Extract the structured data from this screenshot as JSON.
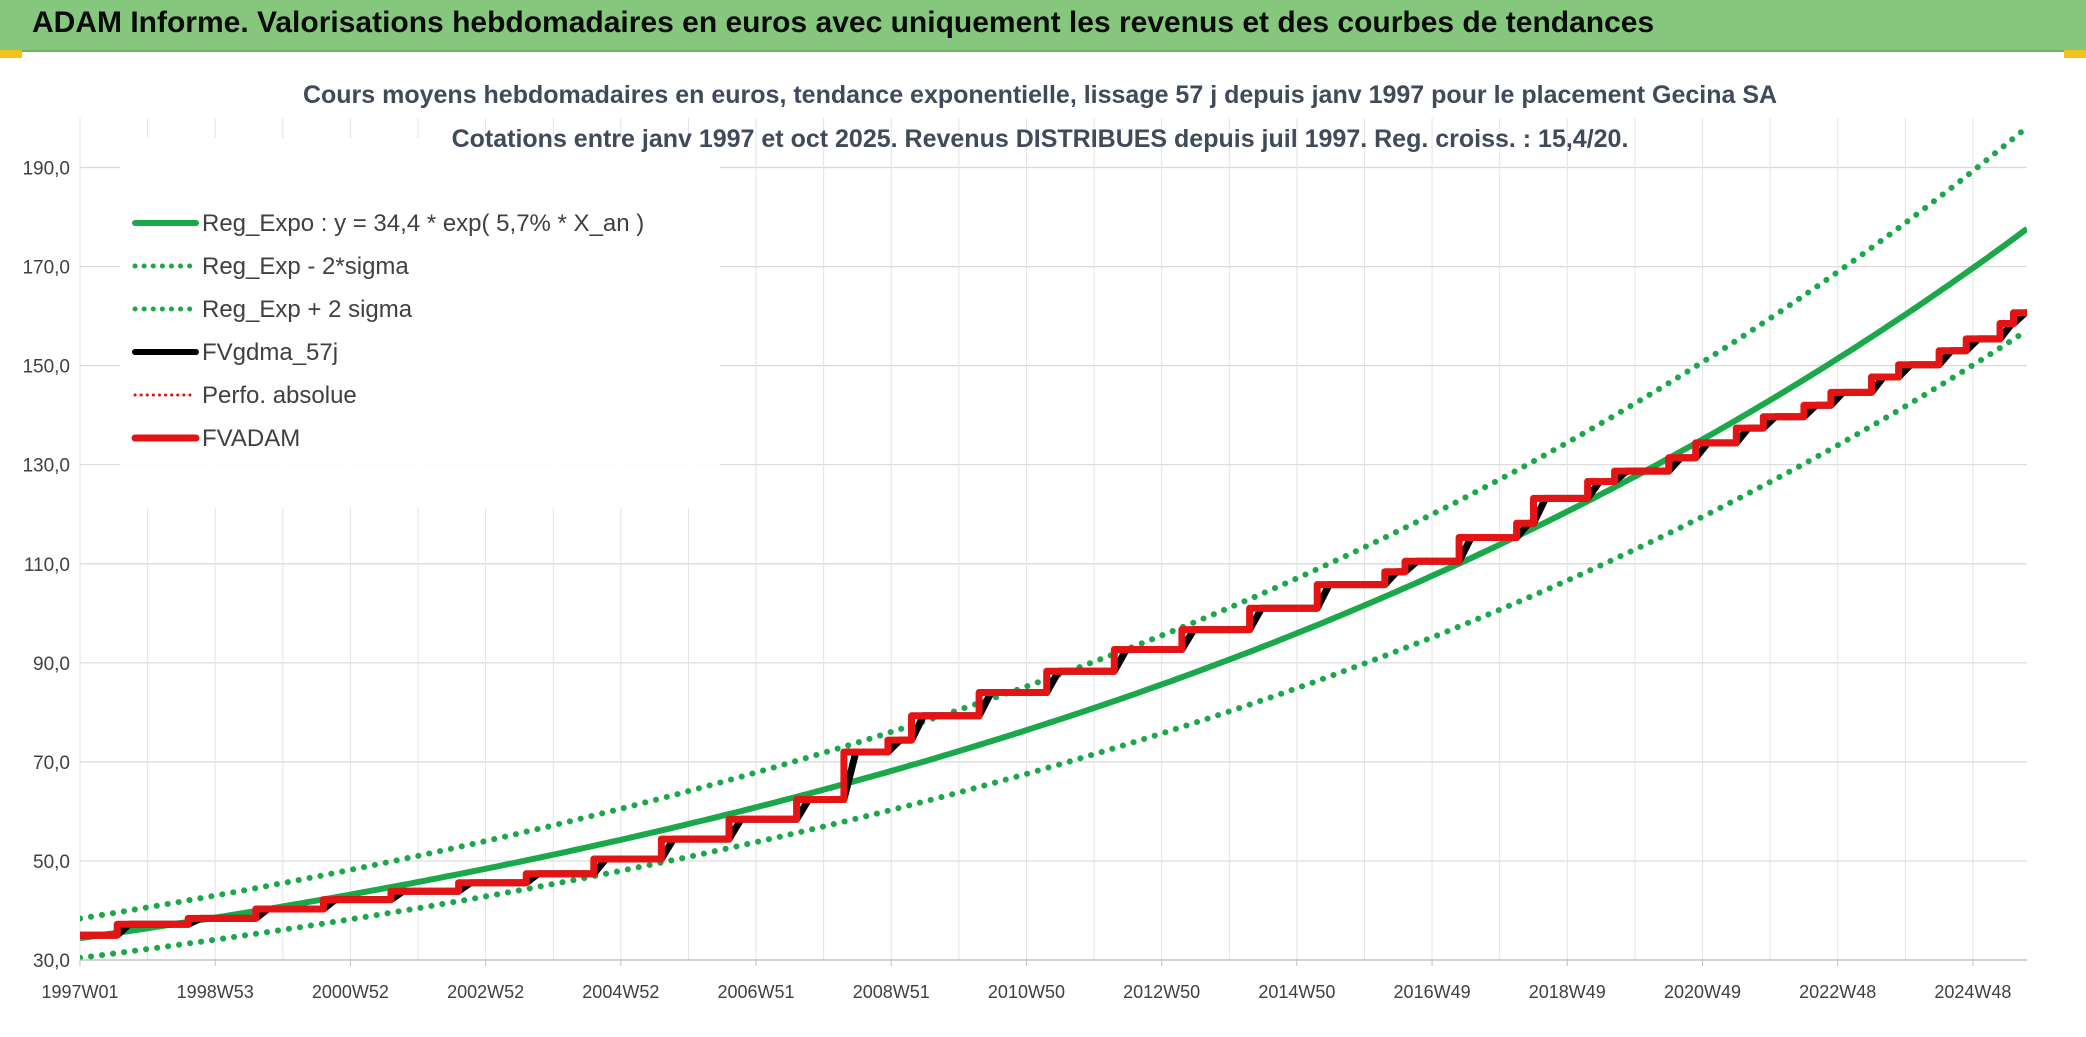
{
  "header": {
    "title": "ADAM Informe. Valorisations hebdomadaires en euros avec uniquement les revenus et des courbes de tendances"
  },
  "chart_data": {
    "type": "line",
    "title_line1": "Cours moyens hebdomadaires en euros, tendance exponentielle, lissage 57 j depuis janv 1997 pour le placement Gecina SA",
    "title_line2": "Cotations entre janv 1997 et oct 2025. Revenus DISTRIBUES depuis juil 1997. Reg. croiss. : 15,4/20.",
    "x_tick_labels": [
      "1997W01",
      "1998W53",
      "2000W52",
      "2002W52",
      "2004W52",
      "2006W51",
      "2008W51",
      "2010W50",
      "2012W50",
      "2014W50",
      "2016W49",
      "2018W49",
      "2020W49",
      "2022W48",
      "2024W48"
    ],
    "x_range_years": [
      1997.0,
      2025.8
    ],
    "y_tick_labels": [
      "30,0",
      "50,0",
      "70,0",
      "90,0",
      "110,0",
      "130,0",
      "150,0",
      "170,0",
      "190,0"
    ],
    "y_tick_values": [
      30,
      50,
      70,
      90,
      110,
      130,
      150,
      170,
      190
    ],
    "ylim": [
      30,
      200
    ],
    "grid": true,
    "legend_position": "top-left",
    "regression": {
      "a": 34.4,
      "rate": 0.057,
      "sigma_factor": 0.1155
    },
    "series": [
      {
        "name": "Reg_Expo : y = 34,4 * exp( 5,7% *  X_an )",
        "color": "#1aa84a",
        "style": "solid"
      },
      {
        "name": "Reg_Exp - 2*sigma",
        "color": "#1aa84a",
        "style": "dotted"
      },
      {
        "name": "Reg_Exp + 2 sigma",
        "color": "#1aa84a",
        "style": "dotted"
      },
      {
        "name": "FVgdma_57j",
        "color": "#000000",
        "style": "solid"
      },
      {
        "name": "Perfo. absolue",
        "color": "#e01010",
        "style": "dotted"
      },
      {
        "name": "FVADAM",
        "color": "#e51414",
        "style": "solid"
      }
    ],
    "fvadam_steps": [
      {
        "year": 1997.0,
        "value": 35.0
      },
      {
        "year": 1997.55,
        "value": 37.2
      },
      {
        "year": 1998.6,
        "value": 38.4
      },
      {
        "year": 1999.6,
        "value": 40.3
      },
      {
        "year": 2000.6,
        "value": 42.2
      },
      {
        "year": 2001.6,
        "value": 43.9
      },
      {
        "year": 2002.6,
        "value": 45.6
      },
      {
        "year": 2003.6,
        "value": 47.4
      },
      {
        "year": 2004.6,
        "value": 50.4
      },
      {
        "year": 2005.6,
        "value": 54.4
      },
      {
        "year": 2006.6,
        "value": 58.4
      },
      {
        "year": 2007.6,
        "value": 62.4
      },
      {
        "year": 2008.3,
        "value": 72.0
      },
      {
        "year": 2008.95,
        "value": 74.4
      },
      {
        "year": 2009.3,
        "value": 79.3
      },
      {
        "year": 2010.3,
        "value": 84.0
      },
      {
        "year": 2011.3,
        "value": 88.3
      },
      {
        "year": 2012.3,
        "value": 92.7
      },
      {
        "year": 2013.3,
        "value": 96.7
      },
      {
        "year": 2014.3,
        "value": 101.0
      },
      {
        "year": 2015.3,
        "value": 105.8
      },
      {
        "year": 2016.3,
        "value": 108.4
      },
      {
        "year": 2016.6,
        "value": 110.5
      },
      {
        "year": 2017.4,
        "value": 115.3
      },
      {
        "year": 2018.25,
        "value": 118.2
      },
      {
        "year": 2018.5,
        "value": 123.2
      },
      {
        "year": 2019.3,
        "value": 126.6
      },
      {
        "year": 2019.7,
        "value": 128.7
      },
      {
        "year": 2020.5,
        "value": 131.4
      },
      {
        "year": 2020.9,
        "value": 134.4
      },
      {
        "year": 2021.5,
        "value": 137.4
      },
      {
        "year": 2021.9,
        "value": 139.7
      },
      {
        "year": 2022.5,
        "value": 142.0
      },
      {
        "year": 2022.9,
        "value": 144.6
      },
      {
        "year": 2023.5,
        "value": 147.7
      },
      {
        "year": 2023.9,
        "value": 150.2
      },
      {
        "year": 2024.5,
        "value": 153.0
      },
      {
        "year": 2024.9,
        "value": 155.4
      },
      {
        "year": 2025.4,
        "value": 158.5
      },
      {
        "year": 2025.6,
        "value": 160.7
      }
    ]
  }
}
